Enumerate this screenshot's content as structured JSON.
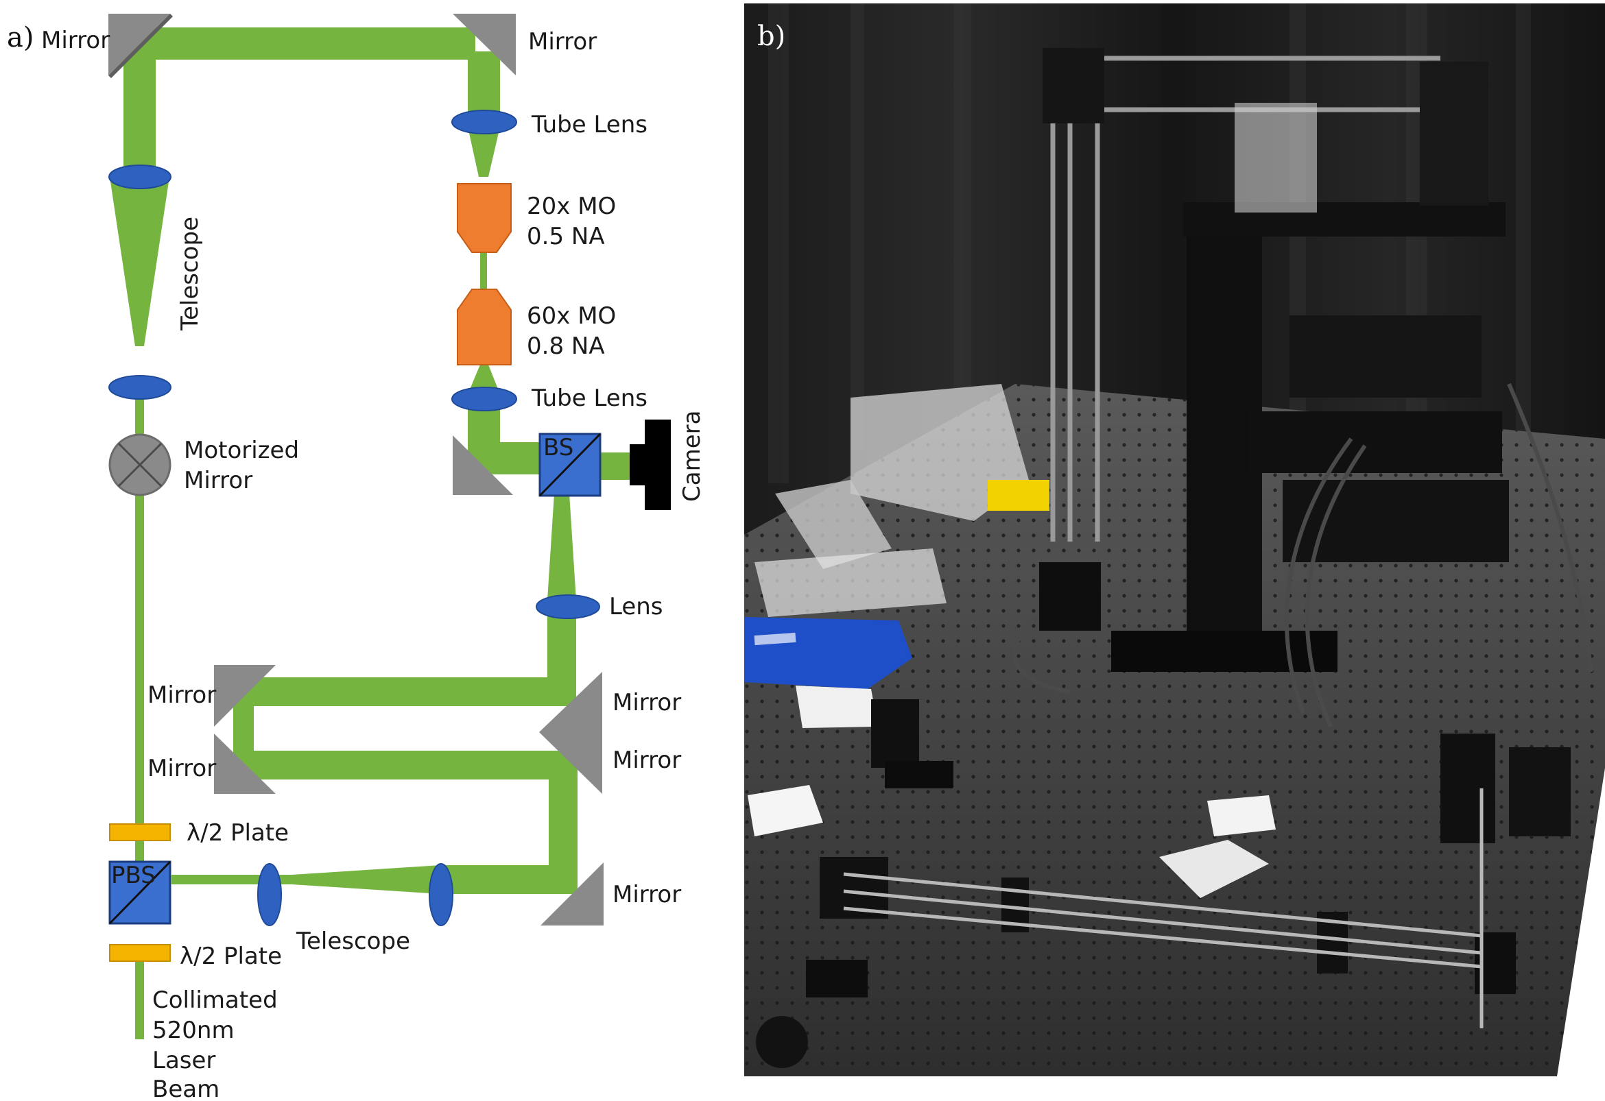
{
  "panel_a": {
    "label": "a)",
    "labels": {
      "mirror_top_left": "Mirror",
      "mirror_top_right": "Mirror",
      "tube_lens_top": "Tube Lens",
      "mo_20x_line1": "20x MO",
      "mo_20x_line2": "0.5 NA",
      "mo_60x_line1": "60x MO",
      "mo_60x_line2": "0.8 NA",
      "tube_lens_bottom": "Tube Lens",
      "telescope_vertical": "Telescope",
      "motorized_mirror_line1": "Motorized",
      "motorized_mirror_line2": "Mirror",
      "bs": "BS",
      "camera": "Camera",
      "lens": "Lens",
      "mirror_delay_left_top": "Mirror",
      "mirror_delay_left_bottom": "Mirror",
      "mirror_delay_right_top": "Mirror",
      "mirror_delay_right_bottom": "Mirror",
      "half_wave_top": "λ/2 Plate",
      "pbs": "PBS",
      "half_wave_bottom": "λ/2 Plate",
      "telescope_horizontal": "Telescope",
      "mirror_bottom_right": "Mirror",
      "source_line1": "Collimated",
      "source_line2": "520nm",
      "source_line3": "Laser",
      "source_line4": "Beam"
    },
    "colors": {
      "beam": "#76b440",
      "mirror": "#8a8a8a",
      "lens": "#2f62c0",
      "plate": "#f4b400",
      "objective": "#ee7d2f",
      "beam_splitter": "#3a6fd0",
      "camera": "#000000"
    }
  },
  "panel_b": {
    "label": "b)"
  }
}
